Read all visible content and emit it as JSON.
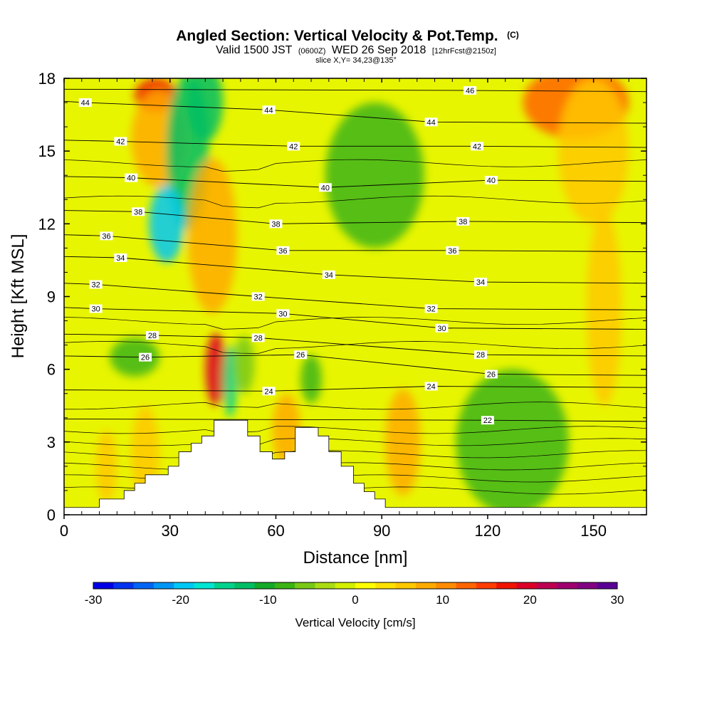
{
  "chart_data": {
    "type": "heatmap",
    "title": "Angled Section: Vertical Velocity & Pot.Temp.",
    "title_unit": "(C)",
    "subtitle": {
      "valid_prefix": "Valid 1500 JST",
      "zulu": "(0600Z)",
      "date": "WED 26 Sep 2018",
      "forecast": "[12hrFcst@2150z]"
    },
    "slice_info": "slice X,Y= 34,23@135°",
    "xlabel": "Distance [nm]",
    "ylabel": "Height [Kft MSL]",
    "xlim": [
      0,
      165
    ],
    "ylim": [
      0,
      18
    ],
    "xticks": [
      "0",
      "30",
      "60",
      "90",
      "120",
      "150"
    ],
    "yticks": [
      "0",
      "3",
      "6",
      "9",
      "12",
      "15",
      "18"
    ],
    "colorbar": {
      "title": "Vertical Velocity [cm/s]",
      "tick_labels": [
        "-30",
        "-20",
        "-10",
        "0",
        "10",
        "20",
        "30"
      ],
      "range": [
        -30,
        30
      ],
      "colors": [
        "#0000e6",
        "#0032f0",
        "#0064f5",
        "#0096f5",
        "#00c8f5",
        "#00e6d2",
        "#00d28c",
        "#00be64",
        "#14aa28",
        "#3cb414",
        "#78c814",
        "#aadc14",
        "#d2f000",
        "#ffff00",
        "#ffe100",
        "#ffc800",
        "#ffaa00",
        "#ff8c00",
        "#ff6400",
        "#ff3c00",
        "#f01400",
        "#dc0028",
        "#be0050",
        "#a0006e",
        "#820082",
        "#5a0096"
      ]
    },
    "terrain": [
      {
        "x": 0,
        "h": 0.3
      },
      {
        "x": 10,
        "h": 0.3
      },
      {
        "x": 10,
        "h": 0.65
      },
      {
        "x": 17,
        "h": 0.65
      },
      {
        "x": 17,
        "h": 1.0
      },
      {
        "x": 20,
        "h": 1.0
      },
      {
        "x": 20,
        "h": 1.3
      },
      {
        "x": 23,
        "h": 1.3
      },
      {
        "x": 23,
        "h": 1.65
      },
      {
        "x": 29.5,
        "h": 1.65
      },
      {
        "x": 29.5,
        "h": 2.0
      },
      {
        "x": 32.5,
        "h": 2.0
      },
      {
        "x": 32.5,
        "h": 2.6
      },
      {
        "x": 36,
        "h": 2.6
      },
      {
        "x": 36,
        "h": 2.95
      },
      {
        "x": 39,
        "h": 2.95
      },
      {
        "x": 39,
        "h": 3.25
      },
      {
        "x": 42.5,
        "h": 3.25
      },
      {
        "x": 42.5,
        "h": 3.9
      },
      {
        "x": 52,
        "h": 3.9
      },
      {
        "x": 52,
        "h": 3.25
      },
      {
        "x": 55.5,
        "h": 3.25
      },
      {
        "x": 55.5,
        "h": 2.6
      },
      {
        "x": 59,
        "h": 2.6
      },
      {
        "x": 59,
        "h": 2.3
      },
      {
        "x": 62.5,
        "h": 2.3
      },
      {
        "x": 62.5,
        "h": 2.6
      },
      {
        "x": 65.5,
        "h": 2.6
      },
      {
        "x": 65.5,
        "h": 3.6
      },
      {
        "x": 72,
        "h": 3.6
      },
      {
        "x": 72,
        "h": 3.25
      },
      {
        "x": 75,
        "h": 3.25
      },
      {
        "x": 75,
        "h": 2.6
      },
      {
        "x": 78.5,
        "h": 2.6
      },
      {
        "x": 78.5,
        "h": 2.0
      },
      {
        "x": 82,
        "h": 2.0
      },
      {
        "x": 82,
        "h": 1.3
      },
      {
        "x": 85,
        "h": 1.3
      },
      {
        "x": 85,
        "h": 0.95
      },
      {
        "x": 88,
        "h": 0.95
      },
      {
        "x": 88,
        "h": 0.65
      },
      {
        "x": 91,
        "h": 0.65
      },
      {
        "x": 91,
        "h": 0.3
      },
      {
        "x": 165,
        "h": 0.3
      }
    ],
    "velocity_features": [
      {
        "x": 26,
        "h": 17.3,
        "rx": 6,
        "ry": 0.7,
        "v": 18
      },
      {
        "x": 27,
        "h": 15.5,
        "rx": 8,
        "ry": 2,
        "v": 8
      },
      {
        "x": 35,
        "h": 15,
        "rx": 6,
        "ry": 3.2,
        "v": -12
      },
      {
        "x": 29,
        "h": 12,
        "rx": 5,
        "ry": 1.6,
        "v": -20
      },
      {
        "x": 40,
        "h": 17,
        "rx": 5,
        "ry": 1.6,
        "v": -12
      },
      {
        "x": 42,
        "h": 11.5,
        "rx": 7,
        "ry": 3.2,
        "v": 8
      },
      {
        "x": 43,
        "h": 6,
        "rx": 3,
        "ry": 1.5,
        "v": 20
      },
      {
        "x": 47,
        "h": 5.5,
        "rx": 2,
        "ry": 1.5,
        "v": -14
      },
      {
        "x": 51,
        "h": 6.2,
        "rx": 3,
        "ry": 1.2,
        "v": -6
      },
      {
        "x": 63,
        "h": 3.5,
        "rx": 4,
        "ry": 1.5,
        "v": 8
      },
      {
        "x": 70,
        "h": 5.6,
        "rx": 3,
        "ry": 1.0,
        "v": -8
      },
      {
        "x": 88,
        "h": 14,
        "rx": 14,
        "ry": 3,
        "v": -7
      },
      {
        "x": 96,
        "h": 3,
        "rx": 5,
        "ry": 2.2,
        "v": 8
      },
      {
        "x": 127,
        "h": 3,
        "rx": 16,
        "ry": 3,
        "v": -8
      },
      {
        "x": 145,
        "h": 17,
        "rx": 15,
        "ry": 1.5,
        "v": 12
      },
      {
        "x": 150,
        "h": 15,
        "rx": 10,
        "ry": 3,
        "v": 6
      },
      {
        "x": 153,
        "h": 8.5,
        "rx": 5,
        "ry": 4,
        "v": 6
      },
      {
        "x": 20,
        "h": 6.5,
        "rx": 7,
        "ry": 0.8,
        "v": -8
      },
      {
        "x": 23,
        "h": 2.5,
        "rx": 4,
        "ry": 2,
        "v": 6
      },
      {
        "x": 12,
        "h": 2,
        "rx": 3,
        "ry": 1.5,
        "v": 6
      }
    ],
    "isotherm_labels": [
      {
        "x": 6,
        "h": 17.0,
        "t": "44"
      },
      {
        "x": 58,
        "h": 16.7,
        "t": "44"
      },
      {
        "x": 104,
        "h": 16.2,
        "t": "44"
      },
      {
        "x": 115,
        "h": 17.5,
        "t": "46"
      },
      {
        "x": 16,
        "h": 15.4,
        "t": "42"
      },
      {
        "x": 65,
        "h": 15.2,
        "t": "42"
      },
      {
        "x": 117,
        "h": 15.2,
        "t": "42"
      },
      {
        "x": 19,
        "h": 13.9,
        "t": "40"
      },
      {
        "x": 74,
        "h": 13.5,
        "t": "40"
      },
      {
        "x": 121,
        "h": 13.8,
        "t": "40"
      },
      {
        "x": 21,
        "h": 12.5,
        "t": "38"
      },
      {
        "x": 60,
        "h": 12.0,
        "t": "38"
      },
      {
        "x": 113,
        "h": 12.1,
        "t": "38"
      },
      {
        "x": 12,
        "h": 11.5,
        "t": "36"
      },
      {
        "x": 62,
        "h": 10.9,
        "t": "36"
      },
      {
        "x": 110,
        "h": 10.9,
        "t": "36"
      },
      {
        "x": 16,
        "h": 10.6,
        "t": "34"
      },
      {
        "x": 75,
        "h": 9.9,
        "t": "34"
      },
      {
        "x": 118,
        "h": 9.6,
        "t": "34"
      },
      {
        "x": 9,
        "h": 9.5,
        "t": "32"
      },
      {
        "x": 55,
        "h": 9.0,
        "t": "32"
      },
      {
        "x": 104,
        "h": 8.5,
        "t": "32"
      },
      {
        "x": 9,
        "h": 8.5,
        "t": "30"
      },
      {
        "x": 62,
        "h": 8.3,
        "t": "30"
      },
      {
        "x": 107,
        "h": 7.7,
        "t": "30"
      },
      {
        "x": 25,
        "h": 7.4,
        "t": "28"
      },
      {
        "x": 55,
        "h": 7.3,
        "t": "28"
      },
      {
        "x": 118,
        "h": 6.6,
        "t": "28"
      },
      {
        "x": 23,
        "h": 6.5,
        "t": "26"
      },
      {
        "x": 67,
        "h": 6.6,
        "t": "26"
      },
      {
        "x": 121,
        "h": 5.8,
        "t": "26"
      },
      {
        "x": 58,
        "h": 5.1,
        "t": "24"
      },
      {
        "x": 104,
        "h": 5.3,
        "t": "24"
      },
      {
        "x": 120,
        "h": 3.9,
        "t": "22"
      }
    ]
  }
}
